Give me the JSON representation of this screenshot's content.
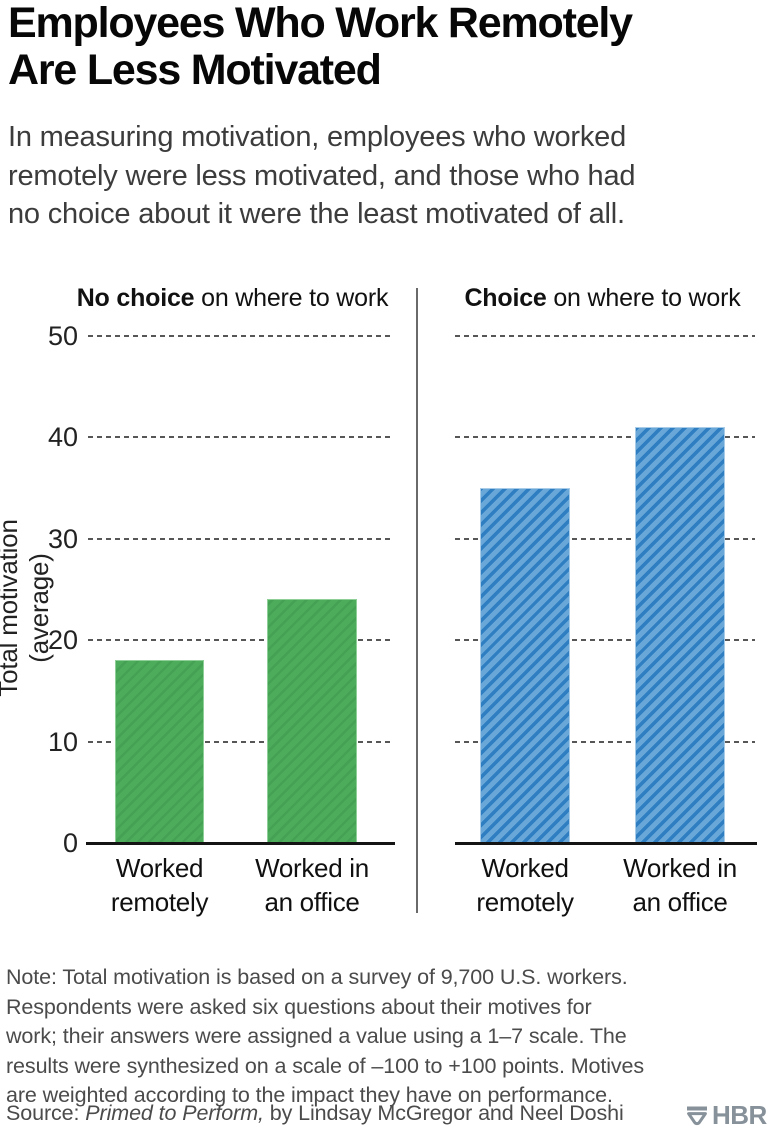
{
  "header": {
    "title": "Employees Who Work Remotely\nAre Less Motivated",
    "subtitle": "In measuring motivation, employees who worked\nremotely were less motivated, and those who had\nno choice about it were the least motivated of all."
  },
  "chart_data": {
    "type": "bar",
    "ylabel": "Total motivation (average)",
    "yticks": [
      0,
      10,
      20,
      30,
      40,
      50
    ],
    "ylim": [
      0,
      50
    ],
    "grid": "dashed horizontal gridlines at each tick, bars drawn over grid",
    "legend_position": "none",
    "panels": [
      {
        "header_bold": "No choice",
        "header_rest": " on where to work",
        "bar_color": "#4cac5c",
        "stripe_color": "#45a254",
        "edge_color": "#8ecf98",
        "categories": [
          "Worked\nremotely",
          "Worked in\nan office"
        ],
        "values": [
          18,
          24
        ]
      },
      {
        "header_bold": "Choice",
        "header_rest": " on where to work",
        "bar_color": "#69a7d9",
        "stripe_color": "#2e7ec1",
        "edge_color": "#a8cbe8",
        "categories": [
          "Worked\nremotely",
          "Worked in\nan office"
        ],
        "values": [
          35,
          41
        ]
      }
    ]
  },
  "footer": {
    "note": "Note: Total motivation is based on a survey of 9,700 U.S. workers.\nRespondents were asked six questions about their motives for\nwork; their answers were assigned a value using a 1–7 scale. The\nresults were synthesized on a scale of –100 to +100 points. Motives\nare weighted according to the impact they have on performance.",
    "source_prefix": "Source: ",
    "source_italic": "Primed to Perform,",
    "source_rest": " by Lindsay McGregor and Neel Doshi",
    "logo_text": "HBR",
    "logo_color": "#87919a"
  }
}
